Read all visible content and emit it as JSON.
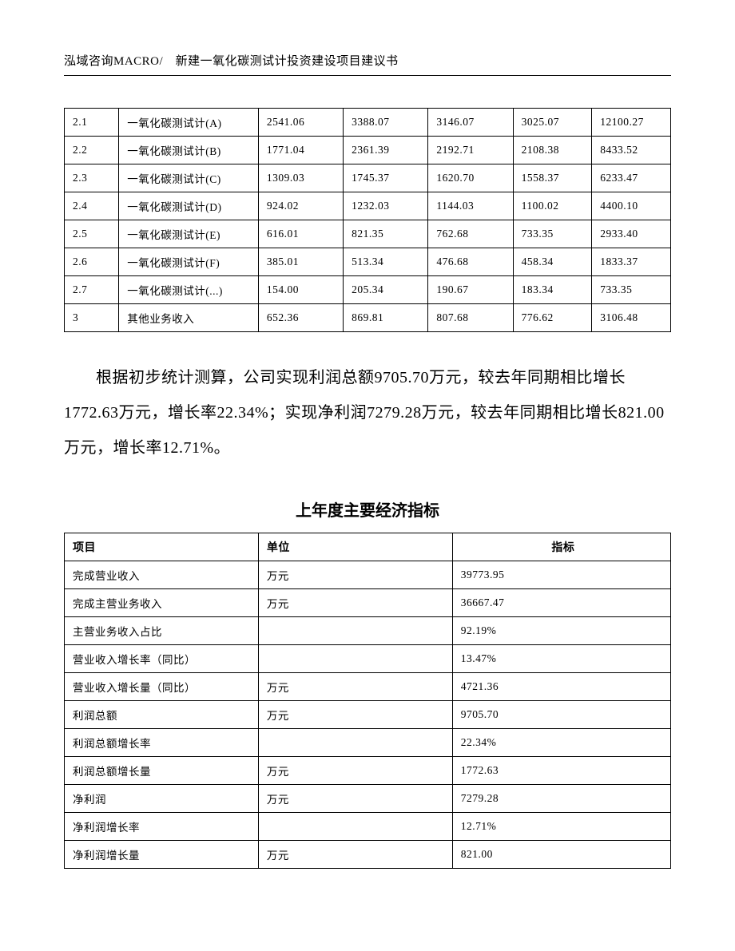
{
  "header": "泓域咨询MACRO/　新建一氧化碳测试计投资建设项目建议书",
  "table1": {
    "rows": [
      [
        "2.1",
        "一氧化碳测试计(A)",
        "2541.06",
        "3388.07",
        "3146.07",
        "3025.07",
        "12100.27"
      ],
      [
        "2.2",
        "一氧化碳测试计(B)",
        "1771.04",
        "2361.39",
        "2192.71",
        "2108.38",
        "8433.52"
      ],
      [
        "2.3",
        "一氧化碳测试计(C)",
        "1309.03",
        "1745.37",
        "1620.70",
        "1558.37",
        "6233.47"
      ],
      [
        "2.4",
        "一氧化碳测试计(D)",
        "924.02",
        "1232.03",
        "1144.03",
        "1100.02",
        "4400.10"
      ],
      [
        "2.5",
        "一氧化碳测试计(E)",
        "616.01",
        "821.35",
        "762.68",
        "733.35",
        "2933.40"
      ],
      [
        "2.6",
        "一氧化碳测试计(F)",
        "385.01",
        "513.34",
        "476.68",
        "458.34",
        "1833.37"
      ],
      [
        "2.7",
        "一氧化碳测试计(...)",
        "154.00",
        "205.34",
        "190.67",
        "183.34",
        "733.35"
      ],
      [
        "3",
        "其他业务收入",
        "652.36",
        "869.81",
        "807.68",
        "776.62",
        "3106.48"
      ]
    ]
  },
  "paragraph": "根据初步统计测算，公司实现利润总额9705.70万元，较去年同期相比增长1772.63万元，增长率22.34%；实现净利润7279.28万元，较去年同期相比增长821.00万元，增长率12.71%。",
  "section_title": "上年度主要经济指标",
  "table2": {
    "headers": [
      "项目",
      "单位",
      "指标"
    ],
    "rows": [
      [
        "完成营业收入",
        "万元",
        "39773.95"
      ],
      [
        "完成主营业务收入",
        "万元",
        "36667.47"
      ],
      [
        "主营业务收入占比",
        "",
        "92.19%"
      ],
      [
        "营业收入增长率（同比）",
        "",
        "13.47%"
      ],
      [
        "营业收入增长量（同比）",
        "万元",
        "4721.36"
      ],
      [
        "利润总额",
        "万元",
        "9705.70"
      ],
      [
        "利润总额增长率",
        "",
        "22.34%"
      ],
      [
        "利润总额增长量",
        "万元",
        "1772.63"
      ],
      [
        "净利润",
        "万元",
        "7279.28"
      ],
      [
        "净利润增长率",
        "",
        "12.71%"
      ],
      [
        "净利润增长量",
        "万元",
        "821.00"
      ]
    ]
  }
}
